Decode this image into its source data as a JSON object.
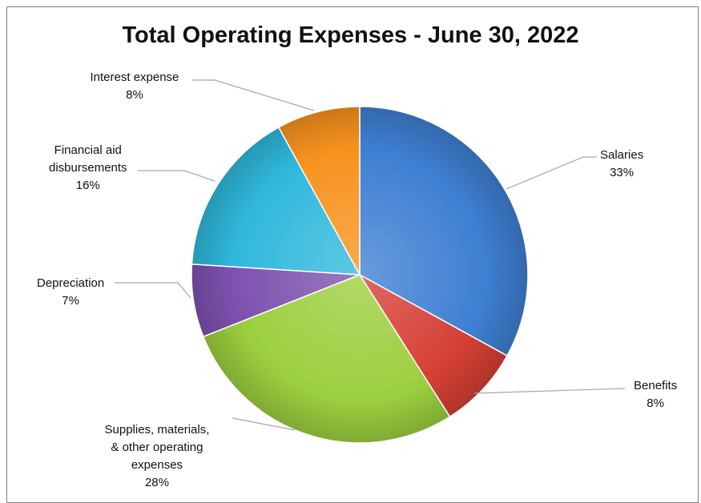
{
  "chart_data": {
    "type": "pie",
    "title": "Total Operating Expenses - June 30, 2022",
    "slices": [
      {
        "label": "Salaries",
        "label_lines": [
          "Salaries"
        ],
        "value": 33,
        "pct_label": "33%",
        "color": "#3e7fd2"
      },
      {
        "label": "Benefits",
        "label_lines": [
          "Benefits"
        ],
        "value": 8,
        "pct_label": "8%",
        "color": "#d53f34"
      },
      {
        "label": "Supplies, materials, & other operating expenses",
        "label_lines": [
          "Supplies, materials,",
          "& other operating",
          "expenses"
        ],
        "value": 28,
        "pct_label": "28%",
        "color": "#9ccf3e"
      },
      {
        "label": "Depreciation",
        "label_lines": [
          "Depreciation"
        ],
        "value": 7,
        "pct_label": "7%",
        "color": "#7d52b0"
      },
      {
        "label": "Financial aid disbursements",
        "label_lines": [
          "Financial aid",
          "disbursements"
        ],
        "value": 16,
        "pct_label": "16%",
        "color": "#30b8dc"
      },
      {
        "label": "Interest expense",
        "label_lines": [
          "Interest expense"
        ],
        "value": 8,
        "pct_label": "8%",
        "color": "#f7921e"
      }
    ],
    "legend": "none",
    "start_angle": "12 o'clock, clockwise"
  }
}
